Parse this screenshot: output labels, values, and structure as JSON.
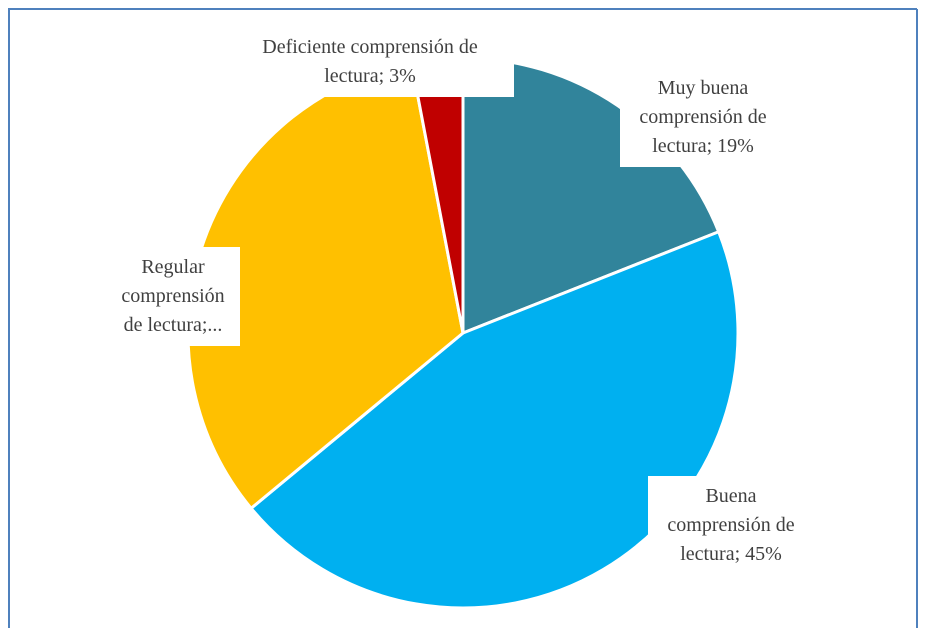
{
  "chart_data": {
    "type": "pie",
    "value_labels": [
      "Muy buena comprensión de lectura; 19%",
      "Buena comprensión de lectura; 45%",
      "Regular comprensión de lectura;...",
      "Deficiente comprensión de lectura; 3%"
    ],
    "values": [
      19,
      45,
      33,
      3
    ],
    "colors": [
      "#31849b",
      "#00b0f0",
      "#ffc000",
      "#c00000"
    ]
  }
}
